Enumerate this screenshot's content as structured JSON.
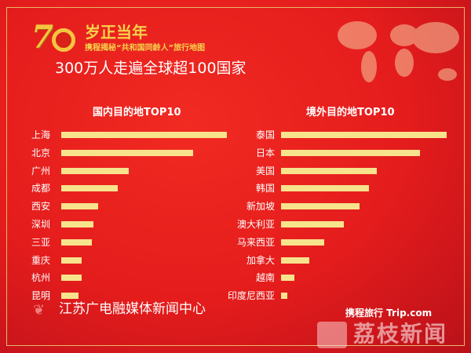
{
  "header": {
    "logo_number": "70",
    "title": "岁正当年",
    "subtitle": "携程揭秘“共和国同龄人”旅行地图",
    "headline": "300万人走遍全球超100国家"
  },
  "footer": {
    "source": "江苏广电融媒体新闻中心",
    "brand": "携程旅行 Trip.com",
    "watermark": "荔枝新闻"
  },
  "colors": {
    "background": "#e41c1c",
    "bar": "#f7e38c",
    "accent": "#f7d24a"
  },
  "chart_data": [
    {
      "type": "bar",
      "orientation": "horizontal",
      "title": "国内目的地TOP10",
      "categories": [
        "上海",
        "北京",
        "广州",
        "成都",
        "西安",
        "深圳",
        "三亚",
        "重庆",
        "杭州",
        "昆明"
      ],
      "values": [
        211,
        168,
        86,
        72,
        47,
        41,
        39,
        26,
        26,
        22
      ],
      "units": "relative",
      "grid": false
    },
    {
      "type": "bar",
      "orientation": "horizontal",
      "title": "境外目的地TOP10",
      "categories": [
        "泰国",
        "日本",
        "美国",
        "韩国",
        "新加坡",
        "澳大利亚",
        "马来西亚",
        "加拿大",
        "越南",
        "印度尼西亚"
      ],
      "values": [
        210,
        176,
        121,
        111,
        100,
        80,
        55,
        36,
        17,
        8
      ],
      "units": "relative",
      "grid": false
    }
  ]
}
